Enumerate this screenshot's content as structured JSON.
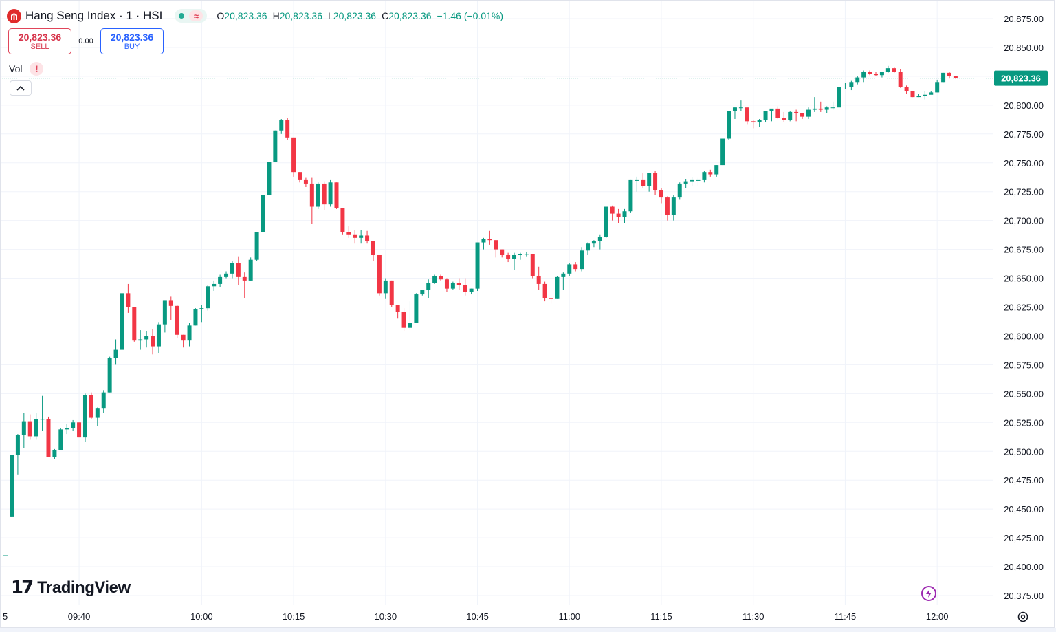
{
  "header": {
    "symbol_title": "Hang Seng Index · 1 · HSI",
    "status_symbol": "≈",
    "ohlc": {
      "o_label": "O",
      "o_value": "20,823.36",
      "h_label": "H",
      "h_value": "20,823.36",
      "l_label": "L",
      "l_value": "20,823.36",
      "c_label": "C",
      "c_value": "20,823.36",
      "change": "−1.46 (−0.01%)"
    }
  },
  "trade": {
    "sell_price": "20,823.36",
    "sell_label": "SELL",
    "spread": "0.00",
    "buy_price": "20,823.36",
    "buy_label": "BUY"
  },
  "volume": {
    "label": "Vol",
    "warning": "!"
  },
  "branding": {
    "wordmark": "TradingView",
    "mark": "17"
  },
  "colors": {
    "up": "#089981",
    "down": "#f23645",
    "last_price_bg": "#089981",
    "grid": "#f0f3fa"
  },
  "icons": [
    "hsi-logo-icon",
    "market-status-dot-icon",
    "market-status-wave-icon",
    "chevron-up-icon",
    "lightning-icon",
    "gear-icon"
  ],
  "chart_data": {
    "type": "candlestick",
    "interval": "1",
    "y_axis": {
      "range": [
        20360,
        20890
      ],
      "ticks": [
        "20,875.00",
        "20,850.00",
        "20,825.00",
        "20,800.00",
        "20,775.00",
        "20,750.00",
        "20,725.00",
        "20,700.00",
        "20,675.00",
        "20,650.00",
        "20,625.00",
        "20,600.00",
        "20,575.00",
        "20,550.00",
        "20,525.00",
        "20,500.00",
        "20,475.00",
        "20,450.00",
        "20,425.00",
        "20,400.00",
        "20,375.00"
      ],
      "tick_values": [
        20875,
        20850,
        20825,
        20800,
        20775,
        20750,
        20725,
        20700,
        20675,
        20650,
        20625,
        20600,
        20575,
        20550,
        20525,
        20500,
        20475,
        20450,
        20425,
        20400,
        20375
      ]
    },
    "x_axis": {
      "first_label": "5",
      "ticks": [
        {
          "label": "09:40",
          "bar": 11
        },
        {
          "label": "10:00",
          "bar": 31
        },
        {
          "label": "10:15",
          "bar": 46
        },
        {
          "label": "10:30",
          "bar": 61
        },
        {
          "label": "10:45",
          "bar": 76
        },
        {
          "label": "11:00",
          "bar": 91
        },
        {
          "label": "11:15",
          "bar": 106
        },
        {
          "label": "11:30",
          "bar": 121
        },
        {
          "label": "11:45",
          "bar": 136
        },
        {
          "label": "12:00",
          "bar": 151
        }
      ]
    },
    "last_price": 20823.36,
    "last_price_label": "20,823.36",
    "grid": true,
    "candles": [
      [
        20443,
        20497,
        20443,
        20497
      ],
      [
        20497,
        20515,
        20480,
        20514
      ],
      [
        20514,
        20533,
        20503,
        20526
      ],
      [
        20526,
        20532,
        20510,
        20513
      ],
      [
        20513,
        20533,
        20510,
        20528
      ],
      [
        20528,
        20548,
        20518,
        20528
      ],
      [
        20528,
        20530,
        20495,
        20495
      ],
      [
        20495,
        20502,
        20493,
        20501
      ],
      [
        20501,
        20520,
        20501,
        20519
      ],
      [
        20519,
        20524,
        20515,
        20520
      ],
      [
        20520,
        20527,
        20518,
        20525
      ],
      [
        20525,
        20525,
        20512,
        20512
      ],
      [
        20512,
        20550,
        20508,
        20549
      ],
      [
        20549,
        20551,
        20528,
        20529
      ],
      [
        20529,
        20538,
        20522,
        20537
      ],
      [
        20537,
        20553,
        20533,
        20551
      ],
      [
        20551,
        20582,
        20551,
        20581
      ],
      [
        20581,
        20597,
        20575,
        20588
      ],
      [
        20588,
        20637,
        20588,
        20637
      ],
      [
        20637,
        20645,
        20620,
        20625
      ],
      [
        20625,
        20625,
        20595,
        20596
      ],
      [
        20596,
        20605,
        20588,
        20597
      ],
      [
        20597,
        20604,
        20590,
        20600
      ],
      [
        20600,
        20606,
        20584,
        20591
      ],
      [
        20591,
        20612,
        20585,
        20610
      ],
      [
        20610,
        20631,
        20603,
        20631
      ],
      [
        20631,
        20634,
        20614,
        20626
      ],
      [
        20626,
        20627,
        20598,
        20601
      ],
      [
        20601,
        20601,
        20590,
        20596
      ],
      [
        20596,
        20611,
        20591,
        20609
      ],
      [
        20609,
        20624,
        20609,
        20623
      ],
      [
        20623,
        20627,
        20612,
        20624
      ],
      [
        20624,
        20644,
        20622,
        20643
      ],
      [
        20643,
        20648,
        20639,
        20645
      ],
      [
        20645,
        20653,
        20642,
        20651
      ],
      [
        20651,
        20656,
        20650,
        20654
      ],
      [
        20654,
        20665,
        20650,
        20663
      ],
      [
        20663,
        20669,
        20644,
        20651
      ],
      [
        20651,
        20655,
        20633,
        20648
      ],
      [
        20648,
        20668,
        20648,
        20666
      ],
      [
        20666,
        20690,
        20665,
        20690
      ],
      [
        20690,
        20723,
        20688,
        20722
      ],
      [
        20722,
        20751,
        20722,
        20751
      ],
      [
        20751,
        20778,
        20751,
        20778
      ],
      [
        20778,
        20788,
        20775,
        20787
      ],
      [
        20787,
        20789,
        20770,
        20772
      ],
      [
        20772,
        20772,
        20738,
        20742
      ],
      [
        20742,
        20742,
        20733,
        20735
      ],
      [
        20735,
        20737,
        20729,
        20732
      ],
      [
        20732,
        20737,
        20697,
        20712
      ],
      [
        20712,
        20733,
        20710,
        20732
      ],
      [
        20732,
        20734,
        20709,
        20714
      ],
      [
        20714,
        20735,
        20712,
        20733
      ],
      [
        20733,
        20733,
        20710,
        20711
      ],
      [
        20711,
        20711,
        20688,
        20690
      ],
      [
        20690,
        20695,
        20685,
        20688
      ],
      [
        20688,
        20692,
        20680,
        20685
      ],
      [
        20685,
        20692,
        20680,
        20687
      ],
      [
        20687,
        20691,
        20680,
        20682
      ],
      [
        20682,
        20682,
        20665,
        20670
      ],
      [
        20670,
        20670,
        20635,
        20637
      ],
      [
        20637,
        20650,
        20632,
        20648
      ],
      [
        20648,
        20648,
        20625,
        20627
      ],
      [
        20627,
        20627,
        20615,
        20621
      ],
      [
        20621,
        20624,
        20604,
        20607
      ],
      [
        20607,
        20630,
        20605,
        20611
      ],
      [
        20611,
        20637,
        20611,
        20636
      ],
      [
        20636,
        20640,
        20635,
        20640
      ],
      [
        20640,
        20649,
        20633,
        20646
      ],
      [
        20646,
        20653,
        20645,
        20652
      ],
      [
        20652,
        20653,
        20648,
        20649
      ],
      [
        20649,
        20650,
        20638,
        20641
      ],
      [
        20641,
        20647,
        20640,
        20646
      ],
      [
        20646,
        20650,
        20640,
        20644
      ],
      [
        20644,
        20650,
        20635,
        20638
      ],
      [
        20638,
        20641,
        20636,
        20641
      ],
      [
        20641,
        20681,
        20639,
        20681
      ],
      [
        20681,
        20685,
        20675,
        20684
      ],
      [
        20684,
        20691,
        20679,
        20683
      ],
      [
        20683,
        20683,
        20668,
        20675
      ],
      [
        20675,
        20675,
        20668,
        20670
      ],
      [
        20670,
        20672,
        20664,
        20667
      ],
      [
        20667,
        20672,
        20657,
        20670
      ],
      [
        20670,
        20672,
        20666,
        20671
      ],
      [
        20671,
        20673,
        20669,
        20671
      ],
      [
        20671,
        20671,
        20650,
        20652
      ],
      [
        20652,
        20660,
        20640,
        20645
      ],
      [
        20645,
        20647,
        20630,
        20633
      ],
      [
        20633,
        20633,
        20628,
        20632
      ],
      [
        20632,
        20652,
        20632,
        20651
      ],
      [
        20651,
        20655,
        20640,
        20654
      ],
      [
        20654,
        20663,
        20652,
        20662
      ],
      [
        20662,
        20664,
        20656,
        20658
      ],
      [
        20658,
        20677,
        20656,
        20674
      ],
      [
        20674,
        20681,
        20670,
        20680
      ],
      [
        20680,
        20683,
        20677,
        20682
      ],
      [
        20682,
        20688,
        20675,
        20686
      ],
      [
        20686,
        20712,
        20685,
        20712
      ],
      [
        20712,
        20713,
        20700,
        20706
      ],
      [
        20706,
        20710,
        20698,
        20703
      ],
      [
        20703,
        20710,
        20698,
        20708
      ],
      [
        20708,
        20735,
        20707,
        20735
      ],
      [
        20735,
        20738,
        20725,
        20735
      ],
      [
        20735,
        20741,
        20728,
        20730
      ],
      [
        20730,
        20741,
        20725,
        20741
      ],
      [
        20741,
        20743,
        20722,
        20726
      ],
      [
        20726,
        20728,
        20715,
        20720
      ],
      [
        20720,
        20721,
        20700,
        20705
      ],
      [
        20705,
        20722,
        20700,
        20720
      ],
      [
        20720,
        20733,
        20718,
        20732
      ],
      [
        20732,
        20736,
        20728,
        20734
      ],
      [
        20734,
        20738,
        20730,
        20735
      ],
      [
        20735,
        20737,
        20730,
        20735
      ],
      [
        20735,
        20743,
        20733,
        20742
      ],
      [
        20742,
        20744,
        20738,
        20740
      ],
      [
        20740,
        20748,
        20738,
        20748
      ],
      [
        20748,
        20771,
        20748,
        20771
      ],
      [
        20771,
        20795,
        20770,
        20795
      ],
      [
        20795,
        20798,
        20788,
        20798
      ],
      [
        20798,
        20804,
        20795,
        20798
      ],
      [
        20798,
        20798,
        20783,
        20786
      ],
      [
        20786,
        20787,
        20780,
        20785
      ],
      [
        20785,
        20788,
        20781,
        20787
      ],
      [
        20787,
        20795,
        20785,
        20795
      ],
      [
        20795,
        20796,
        20786,
        20797
      ],
      [
        20797,
        20799,
        20788,
        20789
      ],
      [
        20789,
        20794,
        20785,
        20787
      ],
      [
        20787,
        20795,
        20786,
        20794
      ],
      [
        20794,
        20796,
        20786,
        20793
      ],
      [
        20793,
        20793,
        20788,
        20790
      ],
      [
        20790,
        20798,
        20788,
        20796
      ],
      [
        20796,
        20807,
        20794,
        20797
      ],
      [
        20797,
        20803,
        20794,
        20796
      ],
      [
        20796,
        20799,
        20793,
        20798
      ],
      [
        20798,
        20803,
        20796,
        20798
      ],
      [
        20798,
        20816,
        20798,
        20816
      ],
      [
        20816,
        20819,
        20814,
        20816
      ],
      [
        20816,
        20821,
        20813,
        20820
      ],
      [
        20820,
        20825,
        20818,
        20824
      ],
      [
        20824,
        20830,
        20820,
        20829
      ],
      [
        20829,
        20830,
        20826,
        20827
      ],
      [
        20827,
        20829,
        20825,
        20826
      ],
      [
        20826,
        20829,
        20824,
        20829
      ],
      [
        20829,
        20834,
        20828,
        20832
      ],
      [
        20832,
        20833,
        20828,
        20829
      ],
      [
        20829,
        20831,
        20815,
        20816
      ],
      [
        20816,
        20817,
        20810,
        20812
      ],
      [
        20812,
        20812,
        20807,
        20807
      ],
      [
        20807,
        20810,
        20807,
        20808
      ],
      [
        20808,
        20812,
        20805,
        20809
      ],
      [
        20809,
        20812,
        20810,
        20811
      ],
      [
        20811,
        20822,
        20811,
        20820
      ],
      [
        20820,
        20828,
        20820,
        20828
      ],
      [
        20828,
        20829,
        20823,
        20825
      ],
      [
        20825,
        20825,
        20823,
        20823.36
      ]
    ]
  }
}
